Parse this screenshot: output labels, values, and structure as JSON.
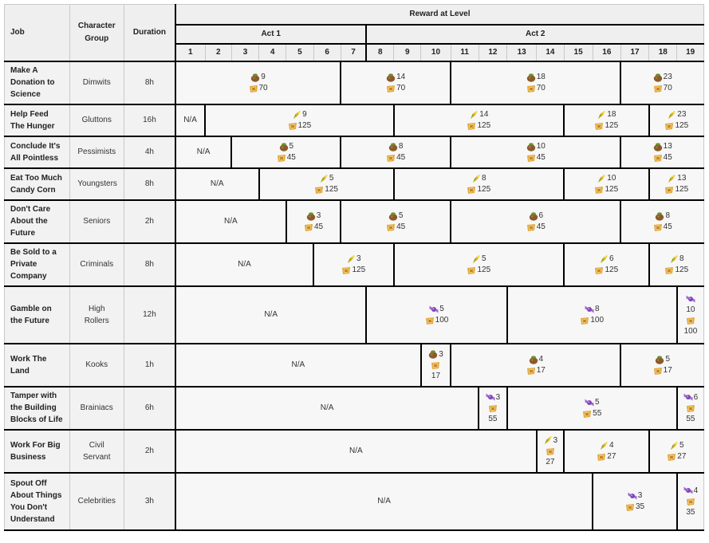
{
  "header": {
    "job": "Job",
    "group": "Character Group",
    "duration": "Duration",
    "reward": "Reward at Level",
    "act1": "Act 1",
    "act2": "Act 2",
    "levels": [
      "1",
      "2",
      "3",
      "4",
      "5",
      "6",
      "7",
      "8",
      "9",
      "10",
      "11",
      "12",
      "13",
      "14",
      "15",
      "16",
      "17",
      "18",
      "19"
    ]
  },
  "na": "N/A",
  "icons": {
    "bag": "money-bag-icon",
    "candy": "candy-corn-icon",
    "wrapped": "wrapped-candy-icon",
    "xp": "xp-token-icon"
  },
  "colors": {
    "header_bg": "#efefef",
    "cell_bg": "#f7f7f7",
    "thick_line": "#000000"
  },
  "rows": [
    {
      "job": "Make A Donation to Science",
      "group": "Dimwits",
      "duration": "8h",
      "na": 0,
      "segs": [
        {
          "span": 6,
          "icon": "bag",
          "v": "9",
          "xp": "70"
        },
        {
          "span": 4,
          "icon": "bag",
          "v": "14",
          "xp": "70"
        },
        {
          "span": 6,
          "icon": "bag",
          "v": "18",
          "xp": "70"
        },
        {
          "span": 3,
          "icon": "bag",
          "v": "23",
          "xp": "70"
        }
      ]
    },
    {
      "job": "Help Feed The Hunger",
      "group": "Gluttons",
      "duration": "16h",
      "na": 1,
      "segs": [
        {
          "span": 7,
          "icon": "candy",
          "v": "9",
          "xp": "125"
        },
        {
          "span": 6,
          "icon": "candy",
          "v": "14",
          "xp": "125"
        },
        {
          "span": 3,
          "icon": "candy",
          "v": "18",
          "xp": "125"
        },
        {
          "span": 2,
          "icon": "candy",
          "v": "23",
          "xp": "125"
        }
      ]
    },
    {
      "job": "Conclude It's All Pointless",
      "group": "Pessimists",
      "duration": "4h",
      "na": 2,
      "segs": [
        {
          "span": 4,
          "icon": "bag",
          "v": "5",
          "xp": "45"
        },
        {
          "span": 4,
          "icon": "bag",
          "v": "8",
          "xp": "45"
        },
        {
          "span": 6,
          "icon": "bag",
          "v": "10",
          "xp": "45"
        },
        {
          "span": 3,
          "icon": "bag",
          "v": "13",
          "xp": "45"
        }
      ]
    },
    {
      "job": "Eat Too Much Candy Corn",
      "group": "Youngsters",
      "duration": "8h",
      "na": 3,
      "segs": [
        {
          "span": 5,
          "icon": "candy",
          "v": "5",
          "xp": "125"
        },
        {
          "span": 6,
          "icon": "candy",
          "v": "8",
          "xp": "125"
        },
        {
          "span": 3,
          "icon": "candy",
          "v": "10",
          "xp": "125"
        },
        {
          "span": 2,
          "icon": "candy",
          "v": "13",
          "xp": "125"
        }
      ]
    },
    {
      "job": "Don't Care About the Future",
      "group": "Seniors",
      "duration": "2h",
      "na": 4,
      "segs": [
        {
          "span": 2,
          "icon": "bag",
          "v": "3",
          "xp": "45"
        },
        {
          "span": 4,
          "icon": "bag",
          "v": "5",
          "xp": "45"
        },
        {
          "span": 6,
          "icon": "bag",
          "v": "6",
          "xp": "45"
        },
        {
          "span": 3,
          "icon": "bag",
          "v": "8",
          "xp": "45"
        }
      ]
    },
    {
      "job": "Be Sold to a Private Company",
      "group": "Criminals",
      "duration": "8h",
      "na": 5,
      "segs": [
        {
          "span": 3,
          "icon": "candy",
          "v": "3",
          "xp": "125"
        },
        {
          "span": 6,
          "icon": "candy",
          "v": "5",
          "xp": "125"
        },
        {
          "span": 3,
          "icon": "candy",
          "v": "6",
          "xp": "125"
        },
        {
          "span": 2,
          "icon": "candy",
          "v": "8",
          "xp": "125"
        }
      ]
    },
    {
      "job": "Gamble on the Future",
      "group": "High Rollers",
      "duration": "12h",
      "na": 7,
      "segs": [
        {
          "span": 5,
          "icon": "wrapped",
          "v": "5",
          "xp": "100"
        },
        {
          "span": 6,
          "icon": "wrapped",
          "v": "8",
          "xp": "100"
        },
        {
          "span": 1,
          "icon": "wrapped",
          "v": "10",
          "xp": "100",
          "stack": true
        }
      ]
    },
    {
      "job": "Work The Land",
      "group": "Kooks",
      "duration": "1h",
      "na": 9,
      "segs": [
        {
          "span": 1,
          "icon": "bag",
          "v": "3",
          "xp": "17",
          "stack": true
        },
        {
          "span": 6,
          "icon": "bag",
          "v": "4",
          "xp": "17"
        },
        {
          "span": 3,
          "icon": "bag",
          "v": "5",
          "xp": "17"
        }
      ]
    },
    {
      "job": "Tamper with the Building Blocks of Life",
      "group": "Brainiacs",
      "duration": "6h",
      "na": 11,
      "segs": [
        {
          "span": 1,
          "icon": "wrapped",
          "v": "3",
          "xp": "55",
          "stack": true
        },
        {
          "span": 6,
          "icon": "wrapped",
          "v": "5",
          "xp": "55"
        },
        {
          "span": 1,
          "icon": "wrapped",
          "v": "6",
          "xp": "55",
          "stack": true
        }
      ]
    },
    {
      "job": "Work For Big Business",
      "group": "Civil Servant",
      "duration": "2h",
      "na": 13,
      "segs": [
        {
          "span": 1,
          "icon": "candy",
          "v": "3",
          "xp": "27",
          "stack": true
        },
        {
          "span": 3,
          "icon": "candy",
          "v": "4",
          "xp": "27"
        },
        {
          "span": 2,
          "icon": "candy",
          "v": "5",
          "xp": "27"
        }
      ]
    },
    {
      "job": "Spout Off About Things You Don't Understand",
      "group": "Celebrities",
      "duration": "3h",
      "na": 15,
      "segs": [
        {
          "span": 3,
          "icon": "wrapped",
          "v": "3",
          "xp": "35"
        },
        {
          "span": 1,
          "icon": "wrapped",
          "v": "4",
          "xp": "35",
          "stack": true
        }
      ]
    }
  ]
}
